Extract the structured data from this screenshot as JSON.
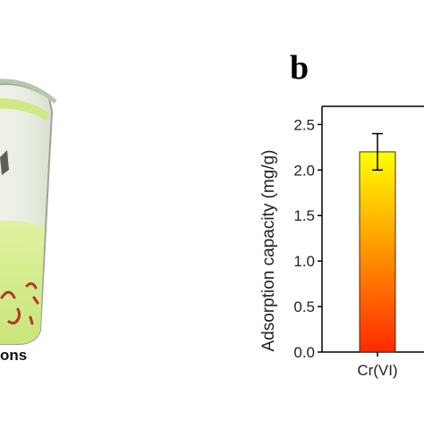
{
  "panel_b": {
    "letter": "b"
  },
  "panel_a": {
    "caption": "ons"
  },
  "colors": {
    "bar_top": "#ffff00",
    "bar_bottom": "#ff2a00",
    "liquid": "#d4ee8a",
    "particles": "#b4372c"
  },
  "chart_data": {
    "type": "bar",
    "categories": [
      "Cr(VI)"
    ],
    "values": [
      2.2
    ],
    "errors": [
      0.2
    ],
    "ylabel": "Adsorption capacity (mg/g)",
    "ylim": [
      0,
      2.7
    ],
    "yticks": [
      "0.0",
      "0.5",
      "1.0",
      "1.5",
      "2.0",
      "2.5"
    ],
    "ytick_values": [
      0,
      0.5,
      1.0,
      1.5,
      2.0,
      2.5
    ]
  }
}
